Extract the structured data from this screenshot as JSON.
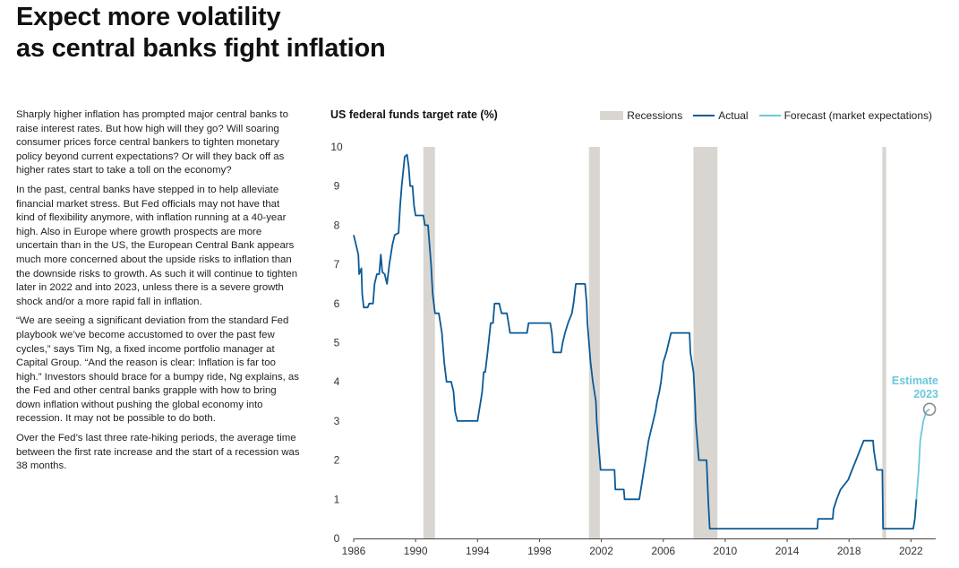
{
  "title": {
    "line1": "Expect more volatility",
    "line2": "as central banks fight inflation"
  },
  "body": {
    "p1": "Sharply higher inflation has prompted major central banks to raise interest rates. But how high will they go? Will soaring consumer prices force central bankers to tighten monetary policy beyond current expectations? Or will they back off as higher rates start to take a toll on the economy?",
    "p2": "In the past, central banks have stepped in to help alleviate financial market stress. But Fed officials may not have that kind of flexibility anymore, with inflation running at a 40-year high. Also in Europe where growth prospects are more uncertain than in the US, the European Central Bank appears much more concerned about the upside risks to inflation than the downside risks to growth. As such it will continue to tighten later in 2022 and into 2023, unless there is a severe growth shock and/or a more rapid fall in inflation.",
    "p3": "“We are seeing a significant deviation from the standard Fed playbook we’ve become accustomed to over the past few cycles,” says Tim Ng, a fixed income portfolio manager at Capital Group. “And the reason is clear: Inflation is far too high.” Investors should brace for a bumpy ride, Ng explains, as the Fed and other central banks grapple with how to bring down inflation without pushing the global economy into recession. It may not be possible to do both.",
    "p4": "Over the Fed’s last three rate-hiking periods, the average time between the first rate increase and the start of a recession was 38 months."
  },
  "legend": {
    "recessions": "Recessions",
    "actual": "Actual",
    "forecast": "Forecast (market expectations)"
  },
  "annotation": {
    "line1": "Estimate",
    "line2": "2023"
  },
  "colors": {
    "actual": "#0b5a96",
    "forecast": "#6cc8dc",
    "recession": "#d9d6d1",
    "axis": "#444444"
  },
  "chart_data": {
    "type": "line",
    "title": "US federal funds target rate (%)",
    "xlabel": "",
    "ylabel": "",
    "xlim": [
      1986,
      2023.6
    ],
    "ylim": [
      0,
      10
    ],
    "x_ticks": [
      1986,
      1990,
      1994,
      1998,
      2002,
      2006,
      2010,
      2014,
      2018,
      2022
    ],
    "y_ticks": [
      0,
      1,
      2,
      3,
      4,
      5,
      6,
      7,
      8,
      9,
      10
    ],
    "recessions": [
      [
        1990.5,
        1991.25
      ],
      [
        2001.2,
        2001.9
      ],
      [
        2007.95,
        2009.5
      ],
      [
        2020.15,
        2020.4
      ]
    ],
    "series": [
      {
        "name": "Actual",
        "points": [
          [
            1986.0,
            7.75
          ],
          [
            1986.3,
            7.25
          ],
          [
            1986.35,
            6.75
          ],
          [
            1986.5,
            6.9
          ],
          [
            1986.55,
            6.25
          ],
          [
            1986.65,
            5.9
          ],
          [
            1986.9,
            5.9
          ],
          [
            1987.0,
            6.0
          ],
          [
            1987.25,
            6.0
          ],
          [
            1987.35,
            6.5
          ],
          [
            1987.5,
            6.75
          ],
          [
            1987.65,
            6.75
          ],
          [
            1987.75,
            7.25
          ],
          [
            1987.85,
            6.8
          ],
          [
            1988.0,
            6.75
          ],
          [
            1988.15,
            6.5
          ],
          [
            1988.3,
            7.0
          ],
          [
            1988.5,
            7.5
          ],
          [
            1988.65,
            7.75
          ],
          [
            1988.9,
            7.8
          ],
          [
            1989.0,
            8.5
          ],
          [
            1989.1,
            9.0
          ],
          [
            1989.3,
            9.75
          ],
          [
            1989.45,
            9.8
          ],
          [
            1989.55,
            9.5
          ],
          [
            1989.65,
            9.0
          ],
          [
            1989.8,
            9.0
          ],
          [
            1989.9,
            8.5
          ],
          [
            1990.0,
            8.25
          ],
          [
            1990.5,
            8.25
          ],
          [
            1990.6,
            8.0
          ],
          [
            1990.8,
            8.0
          ],
          [
            1990.9,
            7.5
          ],
          [
            1991.0,
            7.0
          ],
          [
            1991.1,
            6.25
          ],
          [
            1991.25,
            5.75
          ],
          [
            1991.5,
            5.75
          ],
          [
            1991.7,
            5.25
          ],
          [
            1991.85,
            4.5
          ],
          [
            1992.0,
            4.0
          ],
          [
            1992.3,
            4.0
          ],
          [
            1992.45,
            3.75
          ],
          [
            1992.55,
            3.25
          ],
          [
            1992.7,
            3.0
          ],
          [
            1994.0,
            3.0
          ],
          [
            1994.1,
            3.25
          ],
          [
            1994.2,
            3.5
          ],
          [
            1994.3,
            3.75
          ],
          [
            1994.4,
            4.25
          ],
          [
            1994.5,
            4.25
          ],
          [
            1994.65,
            4.75
          ],
          [
            1994.85,
            5.5
          ],
          [
            1995.0,
            5.5
          ],
          [
            1995.1,
            6.0
          ],
          [
            1995.4,
            6.0
          ],
          [
            1995.55,
            5.75
          ],
          [
            1995.9,
            5.75
          ],
          [
            1996.0,
            5.5
          ],
          [
            1996.1,
            5.25
          ],
          [
            1997.2,
            5.25
          ],
          [
            1997.3,
            5.5
          ],
          [
            1998.7,
            5.5
          ],
          [
            1998.8,
            5.25
          ],
          [
            1998.9,
            4.75
          ],
          [
            1999.4,
            4.75
          ],
          [
            1999.5,
            5.0
          ],
          [
            1999.65,
            5.25
          ],
          [
            1999.85,
            5.5
          ],
          [
            2000.1,
            5.75
          ],
          [
            2000.2,
            6.0
          ],
          [
            2000.35,
            6.5
          ],
          [
            2000.95,
            6.5
          ],
          [
            2001.05,
            6.0
          ],
          [
            2001.1,
            5.5
          ],
          [
            2001.2,
            5.0
          ],
          [
            2001.3,
            4.5
          ],
          [
            2001.45,
            4.0
          ],
          [
            2001.55,
            3.75
          ],
          [
            2001.65,
            3.5
          ],
          [
            2001.7,
            3.0
          ],
          [
            2001.8,
            2.5
          ],
          [
            2001.9,
            2.0
          ],
          [
            2001.95,
            1.75
          ],
          [
            2002.85,
            1.75
          ],
          [
            2002.9,
            1.25
          ],
          [
            2003.45,
            1.25
          ],
          [
            2003.5,
            1.0
          ],
          [
            2004.45,
            1.0
          ],
          [
            2004.55,
            1.25
          ],
          [
            2004.65,
            1.5
          ],
          [
            2004.75,
            1.75
          ],
          [
            2004.85,
            2.0
          ],
          [
            2004.95,
            2.25
          ],
          [
            2005.05,
            2.5
          ],
          [
            2005.2,
            2.75
          ],
          [
            2005.35,
            3.0
          ],
          [
            2005.5,
            3.25
          ],
          [
            2005.6,
            3.5
          ],
          [
            2005.75,
            3.75
          ],
          [
            2005.85,
            4.0
          ],
          [
            2006.0,
            4.5
          ],
          [
            2006.2,
            4.75
          ],
          [
            2006.35,
            5.0
          ],
          [
            2006.5,
            5.25
          ],
          [
            2007.7,
            5.25
          ],
          [
            2007.75,
            4.75
          ],
          [
            2007.85,
            4.5
          ],
          [
            2007.95,
            4.25
          ],
          [
            2008.05,
            3.5
          ],
          [
            2008.1,
            3.0
          ],
          [
            2008.25,
            2.25
          ],
          [
            2008.3,
            2.0
          ],
          [
            2008.8,
            2.0
          ],
          [
            2008.85,
            1.5
          ],
          [
            2008.9,
            1.0
          ],
          [
            2009.0,
            0.25
          ],
          [
            2015.95,
            0.25
          ],
          [
            2016.0,
            0.5
          ],
          [
            2016.95,
            0.5
          ],
          [
            2017.0,
            0.75
          ],
          [
            2017.2,
            1.0
          ],
          [
            2017.45,
            1.25
          ],
          [
            2017.95,
            1.5
          ],
          [
            2018.2,
            1.75
          ],
          [
            2018.45,
            2.0
          ],
          [
            2018.7,
            2.25
          ],
          [
            2018.95,
            2.5
          ],
          [
            2019.55,
            2.5
          ],
          [
            2019.6,
            2.25
          ],
          [
            2019.7,
            2.0
          ],
          [
            2019.8,
            1.75
          ],
          [
            2020.15,
            1.75
          ],
          [
            2020.2,
            0.25
          ],
          [
            2022.15,
            0.25
          ],
          [
            2022.25,
            0.5
          ],
          [
            2022.35,
            1.0
          ]
        ]
      },
      {
        "name": "Forecast (market expectations)",
        "points": [
          [
            2022.35,
            1.0
          ],
          [
            2022.5,
            1.75
          ],
          [
            2022.6,
            2.5
          ],
          [
            2022.8,
            3.0
          ],
          [
            2023.0,
            3.25
          ],
          [
            2023.2,
            3.3
          ]
        ]
      }
    ],
    "annotation": {
      "text": "Estimate 2023",
      "x": 2023.2,
      "y": 3.3
    }
  }
}
